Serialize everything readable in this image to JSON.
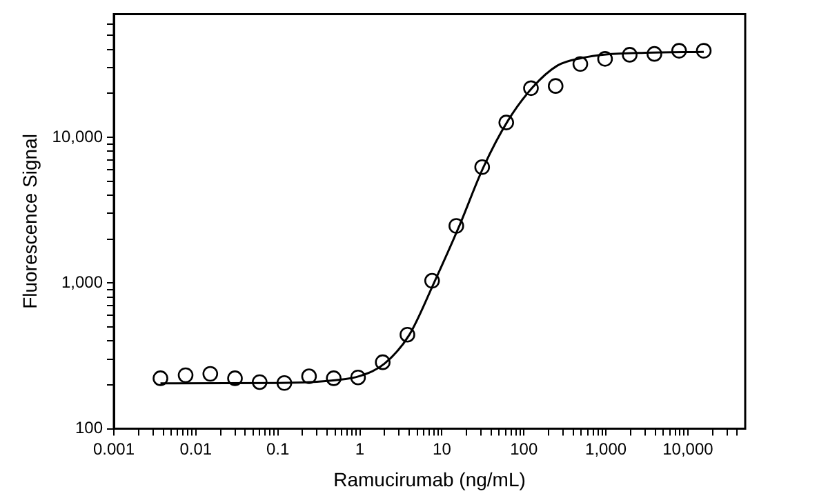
{
  "chart_data": {
    "type": "scatter",
    "xlabel": "Ramucirumab (ng/mL)",
    "ylabel": "Fluorescence Signal",
    "log": "xy",
    "grid": false,
    "legend": false,
    "xlim": [
      0.001,
      50000
    ],
    "ylim": [
      100,
      70000
    ],
    "xticks": [
      {
        "value": 0.001,
        "label": "0.001"
      },
      {
        "value": 0.002,
        "label": null
      },
      {
        "value": 0.003,
        "label": null
      },
      {
        "value": 0.004,
        "label": null
      },
      {
        "value": 0.005,
        "label": null
      },
      {
        "value": 0.006,
        "label": null
      },
      {
        "value": 0.007,
        "label": null
      },
      {
        "value": 0.008,
        "label": null
      },
      {
        "value": 0.009,
        "label": null
      },
      {
        "value": 0.01,
        "label": "0.01"
      },
      {
        "value": 0.02,
        "label": null
      },
      {
        "value": 0.03,
        "label": null
      },
      {
        "value": 0.04,
        "label": null
      },
      {
        "value": 0.05,
        "label": null
      },
      {
        "value": 0.06,
        "label": null
      },
      {
        "value": 0.07,
        "label": null
      },
      {
        "value": 0.08,
        "label": null
      },
      {
        "value": 0.09,
        "label": null
      },
      {
        "value": 0.1,
        "label": "0.1"
      },
      {
        "value": 0.2,
        "label": null
      },
      {
        "value": 0.3,
        "label": null
      },
      {
        "value": 0.4,
        "label": null
      },
      {
        "value": 0.5,
        "label": null
      },
      {
        "value": 0.6,
        "label": null
      },
      {
        "value": 0.7,
        "label": null
      },
      {
        "value": 0.8,
        "label": null
      },
      {
        "value": 0.9,
        "label": null
      },
      1,
      {
        "value": 2,
        "label": null
      },
      {
        "value": 3,
        "label": null
      },
      {
        "value": 4,
        "label": null
      },
      {
        "value": 5,
        "label": null
      },
      {
        "value": 6,
        "label": null
      },
      {
        "value": 7,
        "label": null
      },
      {
        "value": 8,
        "label": null
      },
      {
        "value": 9,
        "label": null
      },
      10,
      {
        "value": 20,
        "label": null
      },
      {
        "value": 30,
        "label": null
      },
      {
        "value": 40,
        "label": null
      },
      {
        "value": 50,
        "label": null
      },
      {
        "value": 60,
        "label": null
      },
      {
        "value": 70,
        "label": null
      },
      {
        "value": 80,
        "label": null
      },
      {
        "value": 90,
        "label": null
      },
      100,
      {
        "value": 200,
        "label": null
      },
      {
        "value": 300,
        "label": null
      },
      {
        "value": 400,
        "label": null
      },
      {
        "value": 500,
        "label": null
      },
      {
        "value": 600,
        "label": null
      },
      {
        "value": 700,
        "label": null
      },
      {
        "value": 800,
        "label": null
      },
      {
        "value": 900,
        "label": null
      },
      {
        "value": 1000,
        "label": "1,000"
      },
      {
        "value": 2000,
        "label": null
      },
      {
        "value": 3000,
        "label": null
      },
      {
        "value": 4000,
        "label": null
      },
      {
        "value": 5000,
        "label": null
      },
      {
        "value": 6000,
        "label": null
      },
      {
        "value": 7000,
        "label": null
      },
      {
        "value": 8000,
        "label": null
      },
      {
        "value": 9000,
        "label": null
      },
      {
        "value": 10000,
        "label": "10,000"
      },
      {
        "value": 20000,
        "label": null
      },
      {
        "value": 30000,
        "label": null
      },
      {
        "value": 40000,
        "label": null
      }
    ],
    "yticks": [
      100,
      {
        "value": 200,
        "label": null
      },
      {
        "value": 300,
        "label": null
      },
      {
        "value": 400,
        "label": null
      },
      {
        "value": 500,
        "label": null
      },
      {
        "value": 600,
        "label": null
      },
      {
        "value": 700,
        "label": null
      },
      {
        "value": 800,
        "label": null
      },
      {
        "value": 900,
        "label": null
      },
      {
        "value": 1000,
        "label": "1,000"
      },
      {
        "value": 2000,
        "label": null
      },
      {
        "value": 3000,
        "label": null
      },
      {
        "value": 4000,
        "label": null
      },
      {
        "value": 5000,
        "label": null
      },
      {
        "value": 6000,
        "label": null
      },
      {
        "value": 7000,
        "label": null
      },
      {
        "value": 8000,
        "label": null
      },
      {
        "value": 9000,
        "label": null
      },
      {
        "value": 10000,
        "label": "10,000"
      },
      {
        "value": 20000,
        "label": null
      },
      {
        "value": 30000,
        "label": null
      },
      {
        "value": 40000,
        "label": null
      },
      {
        "value": 50000,
        "label": null
      },
      {
        "value": 60000,
        "label": null
      }
    ],
    "series": [
      {
        "marker": "circle",
        "color": "#000000",
        "x": [
          0.0037,
          0.0075,
          0.015,
          0.03,
          0.06,
          0.12,
          0.24,
          0.48,
          0.95,
          1.9,
          3.8,
          7.6,
          15,
          31,
          61,
          122,
          244,
          488,
          977,
          1953,
          3906,
          7813,
          15625
        ],
        "values": [
          222,
          233,
          238,
          222,
          209,
          206,
          229,
          222,
          225,
          286,
          442,
          1036,
          2465,
          6240,
          12620,
          21700,
          22480,
          31800,
          34500,
          36800,
          37300,
          39200,
          39200
        ]
      },
      {
        "type": "line",
        "marker": "none",
        "line_style": "solid",
        "color": "#000000",
        "x": [
          0.0037,
          0.1,
          0.5,
          1,
          2,
          4,
          8,
          16,
          32,
          64,
          128,
          256,
          512,
          1000,
          3000,
          15625
        ],
        "values": [
          205,
          206,
          215,
          230,
          280,
          440,
          1000,
          2400,
          6200,
          13000,
          22000,
          31000,
          35000,
          37000,
          38000,
          38500
        ]
      }
    ]
  }
}
